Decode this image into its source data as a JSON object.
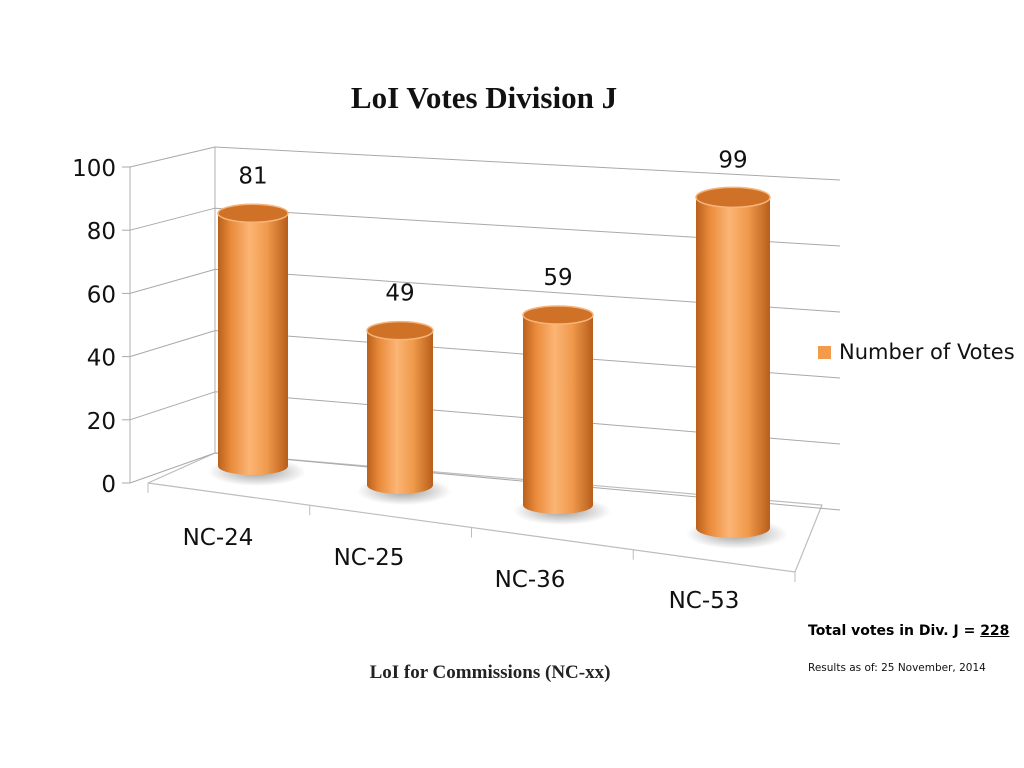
{
  "chart_data": {
    "type": "bar",
    "title": "LoI Votes Division J",
    "xlabel": "LoI for Commissions (NC-xx)",
    "ylabel": "",
    "categories": [
      "NC-24",
      "NC-25",
      "NC-36",
      "NC-53"
    ],
    "series": [
      {
        "name": "Number of Votes",
        "values": [
          81,
          49,
          59,
          99
        ]
      }
    ],
    "ylim": [
      0,
      100
    ],
    "yticks": [
      "0",
      "20",
      "40",
      "60",
      "80",
      "100"
    ],
    "grid": true,
    "legend_position": "right",
    "style": "3d-cylinder",
    "bar_color": "#f29b4a"
  },
  "notes": {
    "total_label": "Total votes in Div. J = ",
    "total_value": "228",
    "results_as_of": "Results as of: 25 November, 2014"
  }
}
